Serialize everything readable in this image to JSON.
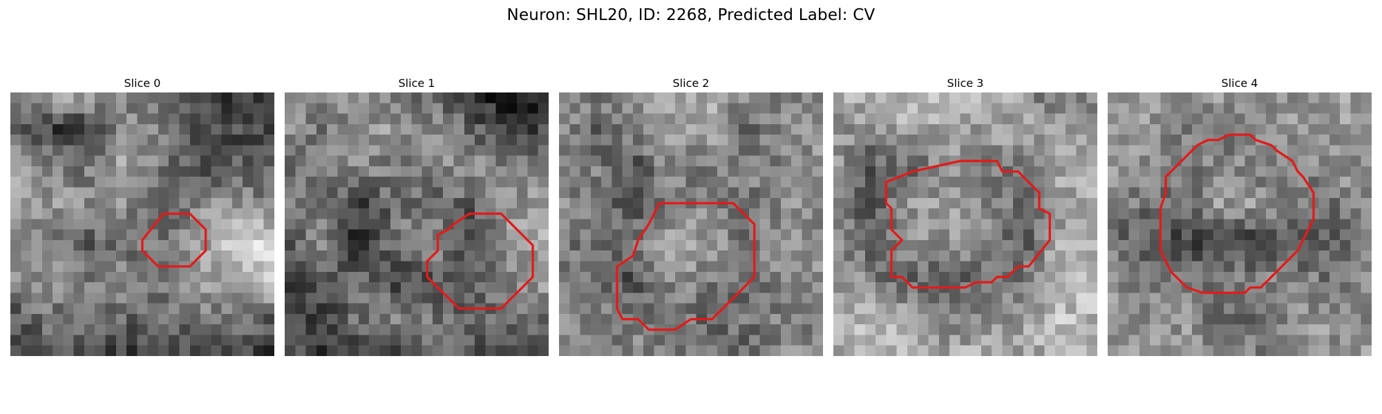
{
  "figure": {
    "title": "Neuron: SHL20, ID: 2268, Predicted Label: CV"
  },
  "contour_color": "#e21b1b",
  "colormap": "gray",
  "slices": [
    {
      "title": "Slice 0",
      "seed": 11,
      "base": [
        [
          0.55,
          0.7,
          0.7,
          0.55,
          0.4,
          0.25,
          0.2,
          0.35
        ],
        [
          0.45,
          0.25,
          0.2,
          0.5,
          0.55,
          0.3,
          0.3,
          0.25
        ],
        [
          0.6,
          0.55,
          0.45,
          0.7,
          0.45,
          0.3,
          0.35,
          0.45
        ],
        [
          0.6,
          0.6,
          0.55,
          0.55,
          0.3,
          0.55,
          0.55,
          0.5
        ],
        [
          0.55,
          0.55,
          0.35,
          0.4,
          0.5,
          0.6,
          0.85,
          0.8
        ],
        [
          0.5,
          0.55,
          0.5,
          0.55,
          0.5,
          0.7,
          0.6,
          0.8
        ],
        [
          0.3,
          0.45,
          0.4,
          0.4,
          0.4,
          0.45,
          0.45,
          0.35
        ],
        [
          0.25,
          0.35,
          0.3,
          0.2,
          0.25,
          0.25,
          0.3,
          0.2
        ]
      ],
      "contour": [
        [
          15,
          11.5
        ],
        [
          17,
          11.5
        ],
        [
          18.5,
          13
        ],
        [
          18.5,
          15
        ],
        [
          17,
          16.5
        ],
        [
          14,
          16.5
        ],
        [
          12.5,
          15
        ],
        [
          12.5,
          14
        ],
        [
          14.5,
          11.5
        ]
      ]
    },
    {
      "title": "Slice 1",
      "seed": 23,
      "base": [
        [
          0.6,
          0.55,
          0.6,
          0.45,
          0.4,
          0.2,
          0.05,
          0.1
        ],
        [
          0.55,
          0.45,
          0.55,
          0.6,
          0.55,
          0.4,
          0.2,
          0.3
        ],
        [
          0.45,
          0.5,
          0.55,
          0.45,
          0.5,
          0.6,
          0.5,
          0.55
        ],
        [
          0.5,
          0.45,
          0.25,
          0.45,
          0.4,
          0.35,
          0.6,
          0.6
        ],
        [
          0.35,
          0.55,
          0.15,
          0.5,
          0.6,
          0.25,
          0.6,
          0.7
        ],
        [
          0.2,
          0.3,
          0.45,
          0.25,
          0.3,
          0.4,
          0.55,
          0.6
        ],
        [
          0.3,
          0.25,
          0.45,
          0.55,
          0.45,
          0.4,
          0.4,
          0.45
        ],
        [
          0.35,
          0.2,
          0.15,
          0.3,
          0.4,
          0.35,
          0.3,
          0.3
        ]
      ],
      "contour": [
        [
          17.5,
          11.5
        ],
        [
          20.5,
          11.5
        ],
        [
          23.5,
          14.5
        ],
        [
          23.5,
          17.5
        ],
        [
          20.5,
          20.5
        ],
        [
          16.5,
          20.5
        ],
        [
          14.5,
          18.5
        ],
        [
          13.5,
          17.5
        ],
        [
          13.5,
          16
        ],
        [
          14.5,
          15
        ],
        [
          14.5,
          13.5
        ],
        [
          15.5,
          13
        ],
        [
          16,
          12.5
        ]
      ]
    },
    {
      "title": "Slice 2",
      "seed": 37,
      "base": [
        [
          0.6,
          0.5,
          0.6,
          0.7,
          0.65,
          0.55,
          0.5,
          0.45
        ],
        [
          0.55,
          0.35,
          0.55,
          0.6,
          0.65,
          0.4,
          0.55,
          0.55
        ],
        [
          0.45,
          0.5,
          0.3,
          0.55,
          0.45,
          0.55,
          0.5,
          0.6
        ],
        [
          0.55,
          0.45,
          0.35,
          0.45,
          0.55,
          0.4,
          0.55,
          0.55
        ],
        [
          0.5,
          0.4,
          0.45,
          0.7,
          0.6,
          0.45,
          0.6,
          0.5
        ],
        [
          0.45,
          0.45,
          0.3,
          0.55,
          0.5,
          0.4,
          0.55,
          0.6
        ],
        [
          0.55,
          0.5,
          0.5,
          0.5,
          0.4,
          0.45,
          0.5,
          0.5
        ],
        [
          0.5,
          0.45,
          0.55,
          0.45,
          0.5,
          0.35,
          0.55,
          0.5
        ]
      ],
      "contour": [
        [
          9.5,
          10.5
        ],
        [
          16.5,
          10.5
        ],
        [
          18.5,
          12.5
        ],
        [
          18.5,
          17.5
        ],
        [
          14.5,
          21.5
        ],
        [
          12.5,
          21.5
        ],
        [
          11,
          22.5
        ],
        [
          8.5,
          22.5
        ],
        [
          7.5,
          21.5
        ],
        [
          6,
          21.5
        ],
        [
          5.5,
          20.5
        ],
        [
          5.5,
          16.5
        ],
        [
          7,
          15.5
        ],
        [
          7.5,
          14
        ],
        [
          8.5,
          12.5
        ]
      ]
    },
    {
      "title": "Slice 3",
      "seed": 41,
      "base": [
        [
          0.65,
          0.7,
          0.75,
          0.7,
          0.7,
          0.6,
          0.4,
          0.55
        ],
        [
          0.6,
          0.55,
          0.65,
          0.65,
          0.6,
          0.65,
          0.6,
          0.6
        ],
        [
          0.6,
          0.35,
          0.4,
          0.55,
          0.5,
          0.45,
          0.65,
          0.65
        ],
        [
          0.55,
          0.3,
          0.6,
          0.6,
          0.55,
          0.4,
          0.6,
          0.7
        ],
        [
          0.6,
          0.35,
          0.55,
          0.6,
          0.6,
          0.35,
          0.65,
          0.7
        ],
        [
          0.65,
          0.5,
          0.4,
          0.35,
          0.4,
          0.45,
          0.7,
          0.75
        ],
        [
          0.7,
          0.7,
          0.65,
          0.5,
          0.55,
          0.6,
          0.75,
          0.7
        ],
        [
          0.65,
          0.75,
          0.7,
          0.65,
          0.7,
          0.65,
          0.7,
          0.65
        ]
      ],
      "contour": [
        [
          7.5,
          7.5
        ],
        [
          12,
          6.5
        ],
        [
          15.5,
          6.5
        ],
        [
          16,
          7.5
        ],
        [
          17.5,
          7.5
        ],
        [
          19.5,
          9.5
        ],
        [
          19.5,
          11
        ],
        [
          20.5,
          11.5
        ],
        [
          20.5,
          14
        ],
        [
          18.5,
          16.5
        ],
        [
          17.5,
          16.5
        ],
        [
          16.5,
          17.5
        ],
        [
          15.5,
          17.5
        ],
        [
          15,
          18
        ],
        [
          13.5,
          18
        ],
        [
          12.5,
          18.5
        ],
        [
          7.5,
          18.5
        ],
        [
          6.5,
          17.5
        ],
        [
          5.5,
          17.5
        ],
        [
          5.5,
          15
        ],
        [
          6.5,
          14
        ],
        [
          5.5,
          13
        ],
        [
          5.5,
          11
        ],
        [
          5,
          10.5
        ],
        [
          5,
          8.5
        ]
      ]
    },
    {
      "title": "Slice 4",
      "seed": 53,
      "base": [
        [
          0.6,
          0.65,
          0.55,
          0.65,
          0.6,
          0.55,
          0.65,
          0.6
        ],
        [
          0.55,
          0.6,
          0.5,
          0.45,
          0.55,
          0.6,
          0.55,
          0.65
        ],
        [
          0.6,
          0.55,
          0.45,
          0.55,
          0.5,
          0.45,
          0.6,
          0.55
        ],
        [
          0.5,
          0.45,
          0.4,
          0.6,
          0.6,
          0.5,
          0.45,
          0.6
        ],
        [
          0.45,
          0.35,
          0.25,
          0.25,
          0.2,
          0.35,
          0.4,
          0.55
        ],
        [
          0.55,
          0.5,
          0.45,
          0.5,
          0.55,
          0.5,
          0.45,
          0.6
        ],
        [
          0.6,
          0.55,
          0.6,
          0.4,
          0.45,
          0.55,
          0.6,
          0.55
        ],
        [
          0.55,
          0.6,
          0.55,
          0.6,
          0.5,
          0.6,
          0.55,
          0.65
        ]
      ],
      "contour": [
        [
          9.5,
          4.5
        ],
        [
          10.5,
          4.5
        ],
        [
          11.5,
          4
        ],
        [
          13.5,
          4
        ],
        [
          14,
          4.5
        ],
        [
          15.5,
          5
        ],
        [
          16,
          5.5
        ],
        [
          17.5,
          6.5
        ],
        [
          18,
          7.5
        ],
        [
          18.5,
          8
        ],
        [
          19.5,
          9.5
        ],
        [
          19.5,
          12
        ],
        [
          19,
          13
        ],
        [
          18.5,
          14
        ],
        [
          18,
          15
        ],
        [
          17,
          16
        ],
        [
          16,
          17
        ],
        [
          15,
          18
        ],
        [
          14.5,
          18.5
        ],
        [
          13.5,
          18.5
        ],
        [
          13,
          19
        ],
        [
          9,
          19
        ],
        [
          7.5,
          18.5
        ],
        [
          7,
          18
        ],
        [
          6,
          17
        ],
        [
          5.5,
          16
        ],
        [
          5,
          15
        ],
        [
          5,
          13
        ],
        [
          5,
          11
        ],
        [
          5.5,
          9.5
        ],
        [
          5.5,
          8
        ],
        [
          6.5,
          7
        ],
        [
          7.5,
          6
        ],
        [
          8.5,
          5
        ]
      ]
    }
  ]
}
